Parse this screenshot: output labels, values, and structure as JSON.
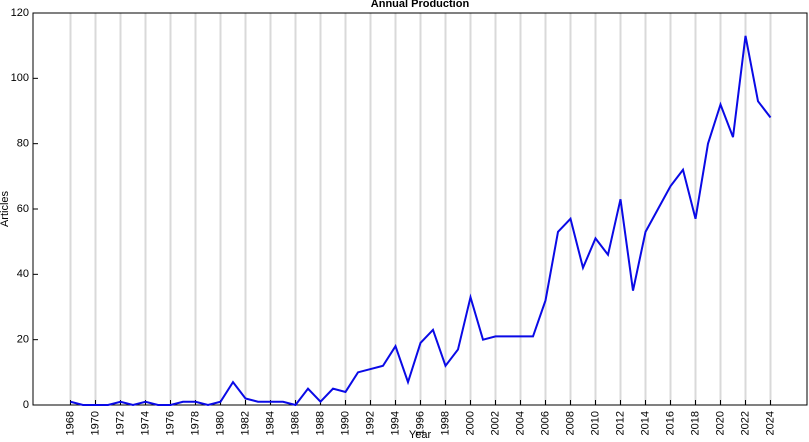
{
  "chart_data": {
    "type": "line",
    "title": "Annual Production",
    "x_label": "Year",
    "y_label": "Articles",
    "x": [
      1968,
      1969,
      1970,
      1971,
      1972,
      1973,
      1974,
      1975,
      1976,
      1977,
      1978,
      1979,
      1980,
      1981,
      1982,
      1983,
      1984,
      1985,
      1986,
      1987,
      1988,
      1989,
      1990,
      1991,
      1992,
      1993,
      1994,
      1995,
      1996,
      1997,
      1998,
      1999,
      2000,
      2001,
      2002,
      2003,
      2004,
      2005,
      2006,
      2007,
      2008,
      2009,
      2010,
      2011,
      2012,
      2013,
      2014,
      2015,
      2016,
      2017,
      2018,
      2019,
      2020,
      2021,
      2022,
      2023,
      2024
    ],
    "series": [
      {
        "name": "Articles",
        "color": "#0a0ae6",
        "values": [
          1,
          0,
          0,
          0,
          1,
          0,
          1,
          0,
          0,
          1,
          1,
          0,
          1,
          7,
          2,
          1,
          1,
          1,
          0,
          5,
          1,
          5,
          4,
          10,
          11,
          12,
          18,
          7,
          19,
          23,
          12,
          17,
          33,
          20,
          21,
          21,
          21,
          21,
          32,
          53,
          57,
          42,
          51,
          46,
          63,
          35,
          53,
          60,
          67,
          72,
          57,
          80,
          92,
          82,
          113,
          93,
          88
        ]
      }
    ],
    "xlim": [
      1965,
      2027
    ],
    "xticks": [
      1968,
      1970,
      1972,
      1974,
      1976,
      1978,
      1980,
      1982,
      1984,
      1986,
      1988,
      1990,
      1992,
      1994,
      1996,
      1998,
      2000,
      2002,
      2004,
      2006,
      2008,
      2010,
      2012,
      2014,
      2016,
      2018,
      2020,
      2022,
      2024
    ],
    "ylim": [
      0,
      120
    ],
    "yticks": [
      0,
      20,
      40,
      60,
      80,
      100,
      120
    ],
    "grid": true
  }
}
